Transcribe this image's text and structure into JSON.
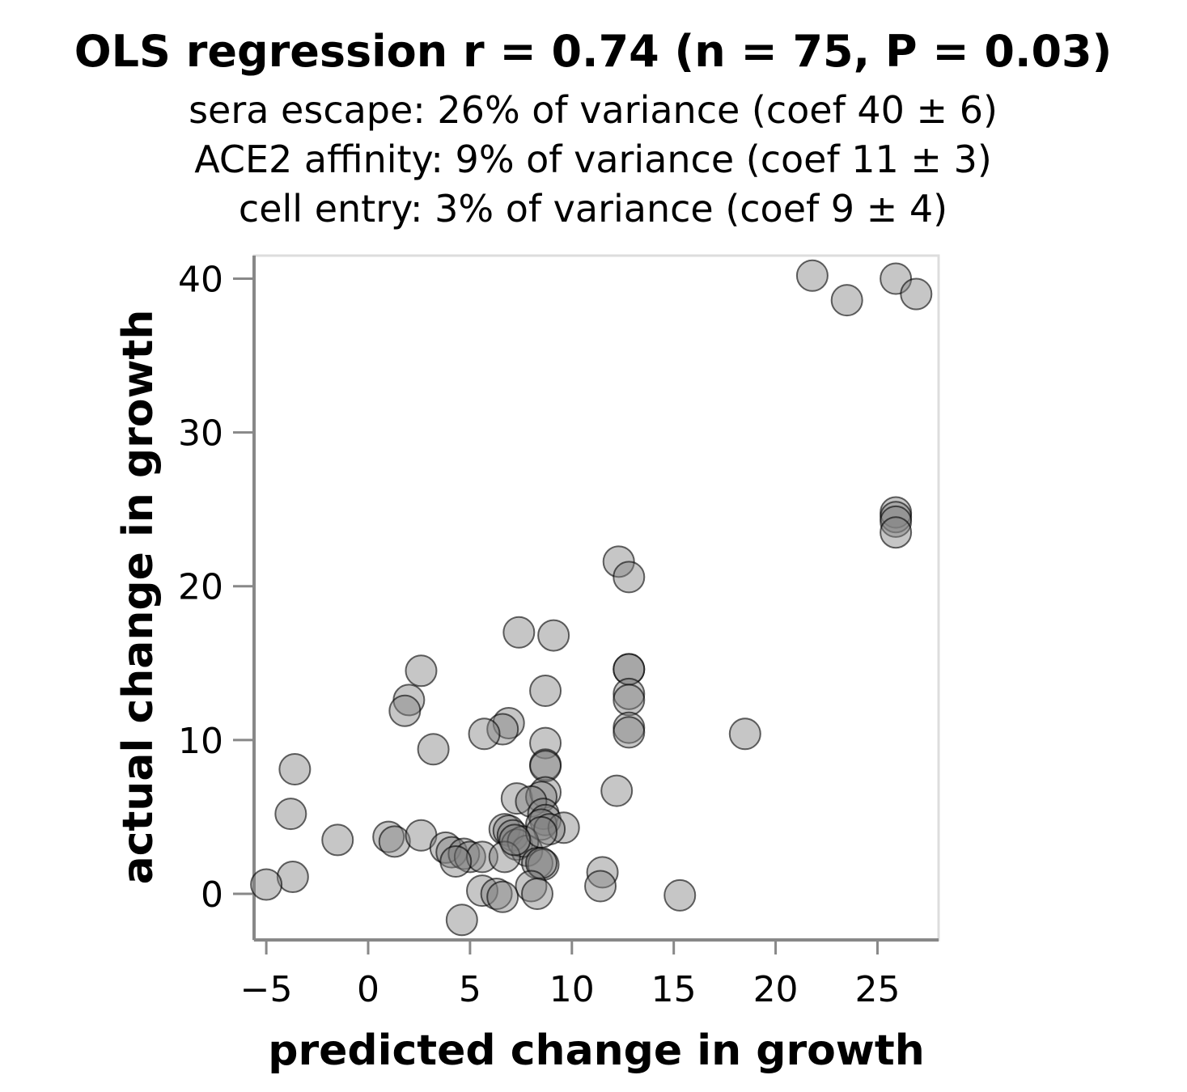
{
  "chart_data": {
    "type": "scatter",
    "title": "OLS regression r = 0.74 (n = 75, P = 0.03)",
    "subtitle": [
      "sera escape: 26% of variance (coef 40 ± 6)",
      "ACE2 affinity: 9% of variance (coef 11 ± 3)",
      "cell entry: 3% of variance (coef 9 ± 4)"
    ],
    "xlabel": "predicted change in growth",
    "ylabel": "actual change in growth",
    "xlim": [
      -5.6,
      28
    ],
    "ylim": [
      -3,
      41.5
    ],
    "xticks": [
      -5,
      0,
      5,
      10,
      15,
      20,
      25
    ],
    "xtick_labels": [
      "−5",
      "0",
      "5",
      "10",
      "15",
      "20",
      "25"
    ],
    "yticks": [
      0,
      10,
      20,
      30,
      40
    ],
    "ytick_labels": [
      "0",
      "10",
      "20",
      "30",
      "40"
    ],
    "grid": false,
    "point_color": "#808080",
    "point_opacity": 0.45,
    "point_stroke": "#000000",
    "axis_color": "#888888",
    "frame_color": "#dddddd",
    "points": [
      {
        "x": 21.8,
        "y": 40.2
      },
      {
        "x": 25.9,
        "y": 40.0
      },
      {
        "x": 23.5,
        "y": 38.6
      },
      {
        "x": 26.9,
        "y": 39.0
      },
      {
        "x": 25.9,
        "y": 24.8
      },
      {
        "x": 25.9,
        "y": 24.5
      },
      {
        "x": 25.9,
        "y": 24.2
      },
      {
        "x": 25.9,
        "y": 23.5
      },
      {
        "x": 12.3,
        "y": 21.6
      },
      {
        "x": 12.8,
        "y": 20.6
      },
      {
        "x": 7.4,
        "y": 17.0
      },
      {
        "x": 9.1,
        "y": 16.8
      },
      {
        "x": 2.6,
        "y": 14.5
      },
      {
        "x": 12.8,
        "y": 14.6
      },
      {
        "x": 12.8,
        "y": 14.6
      },
      {
        "x": 12.8,
        "y": 13.0
      },
      {
        "x": 12.8,
        "y": 12.6
      },
      {
        "x": 8.7,
        "y": 13.2
      },
      {
        "x": 2.0,
        "y": 12.6
      },
      {
        "x": 1.8,
        "y": 11.9
      },
      {
        "x": 6.9,
        "y": 11.1
      },
      {
        "x": 6.6,
        "y": 10.7
      },
      {
        "x": 5.7,
        "y": 10.4
      },
      {
        "x": 18.5,
        "y": 10.4
      },
      {
        "x": 12.8,
        "y": 10.8
      },
      {
        "x": 12.8,
        "y": 10.5
      },
      {
        "x": 8.7,
        "y": 9.8
      },
      {
        "x": 3.2,
        "y": 9.4
      },
      {
        "x": -3.6,
        "y": 8.1
      },
      {
        "x": 8.7,
        "y": 8.4
      },
      {
        "x": 8.7,
        "y": 8.3
      },
      {
        "x": 12.2,
        "y": 6.7
      },
      {
        "x": 7.3,
        "y": 6.2
      },
      {
        "x": 8.7,
        "y": 6.6
      },
      {
        "x": 8.5,
        "y": 6.3
      },
      {
        "x": 8.0,
        "y": 6.0
      },
      {
        "x": -3.8,
        "y": 5.2
      },
      {
        "x": 8.6,
        "y": 5.2
      },
      {
        "x": 8.7,
        "y": 4.8
      },
      {
        "x": 8.5,
        "y": 4.5
      },
      {
        "x": 9.6,
        "y": 4.3
      },
      {
        "x": 8.9,
        "y": 4.2
      },
      {
        "x": 6.7,
        "y": 4.2
      },
      {
        "x": 6.9,
        "y": 4.1
      },
      {
        "x": 7.1,
        "y": 3.8
      },
      {
        "x": 1.0,
        "y": 3.7
      },
      {
        "x": 1.3,
        "y": 3.4
      },
      {
        "x": 2.6,
        "y": 3.8
      },
      {
        "x": -1.5,
        "y": 3.5
      },
      {
        "x": 7.3,
        "y": 3.2
      },
      {
        "x": 7.8,
        "y": 2.8
      },
      {
        "x": 7.6,
        "y": 3.4
      },
      {
        "x": 3.8,
        "y": 3.0
      },
      {
        "x": 4.1,
        "y": 2.7
      },
      {
        "x": 4.7,
        "y": 2.6
      },
      {
        "x": 5.0,
        "y": 2.4
      },
      {
        "x": 5.6,
        "y": 2.4
      },
      {
        "x": 4.3,
        "y": 2.1
      },
      {
        "x": 6.7,
        "y": 2.4
      },
      {
        "x": 8.3,
        "y": 2.0
      },
      {
        "x": 8.6,
        "y": 1.9
      },
      {
        "x": 8.5,
        "y": 2.0
      },
      {
        "x": 11.5,
        "y": 1.4
      },
      {
        "x": -3.7,
        "y": 1.1
      },
      {
        "x": -5.0,
        "y": 0.6
      },
      {
        "x": 11.4,
        "y": 0.5
      },
      {
        "x": 8.0,
        "y": 0.5
      },
      {
        "x": 5.6,
        "y": 0.2
      },
      {
        "x": 6.3,
        "y": 0.0
      },
      {
        "x": 6.6,
        "y": -0.2
      },
      {
        "x": 8.3,
        "y": 0.0
      },
      {
        "x": 15.3,
        "y": -0.1
      },
      {
        "x": 4.6,
        "y": -1.7
      },
      {
        "x": 8.5,
        "y": 4.0
      },
      {
        "x": 7.2,
        "y": 3.5
      }
    ]
  }
}
